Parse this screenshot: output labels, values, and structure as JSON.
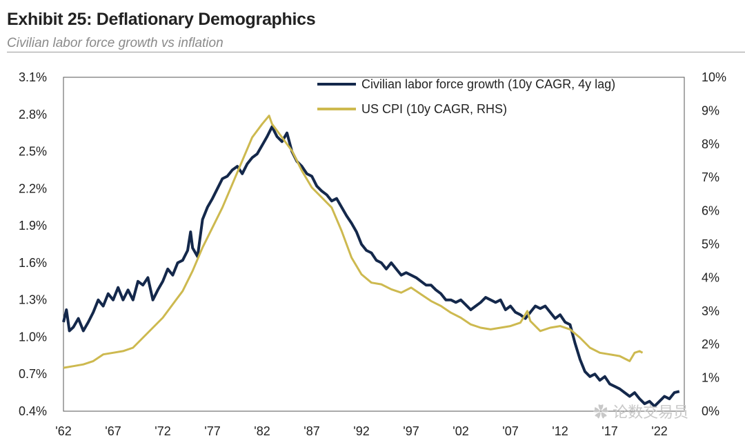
{
  "header": {
    "title": "Exhibit 25: Deflationary Demographics",
    "subtitle": "Civilian labor force growth vs inflation"
  },
  "watermark": {
    "text": "论数交易员",
    "icon": "wechat-icon"
  },
  "chart_data": {
    "type": "line",
    "title": "Exhibit 25: Deflationary Demographics",
    "subtitle": "Civilian labor force growth vs inflation",
    "x_tick_labels": [
      "'62",
      "'67",
      "'72",
      "'77",
      "'82",
      "'87",
      "'92",
      "'97",
      "'02",
      "'07",
      "'12",
      "'17",
      "'22"
    ],
    "x_range": [
      1962,
      2024.5
    ],
    "y_left": {
      "range": [
        0.4,
        3.1
      ],
      "ticks": [
        0.4,
        0.7,
        1.0,
        1.3,
        1.6,
        1.9,
        2.2,
        2.5,
        2.8,
        3.1
      ],
      "tick_labels": [
        "0.4%",
        "0.7%",
        "1.0%",
        "1.3%",
        "1.6%",
        "1.9%",
        "2.2%",
        "2.5%",
        "2.8%",
        "3.1%"
      ]
    },
    "y_right": {
      "range": [
        0,
        10
      ],
      "ticks": [
        0,
        1,
        2,
        3,
        4,
        5,
        6,
        7,
        8,
        9,
        10
      ],
      "tick_labels": [
        "0%",
        "1%",
        "2%",
        "3%",
        "4%",
        "5%",
        "6%",
        "7%",
        "8%",
        "9%",
        "10%"
      ]
    },
    "legend_position": "top-right",
    "grid": false,
    "series": [
      {
        "name": "Civilian labor force growth (10y CAGR, 4y lag)",
        "axis": "left",
        "color": "#14284b",
        "points": [
          [
            1962,
            1.12
          ],
          [
            1962.3,
            1.22
          ],
          [
            1962.6,
            1.05
          ],
          [
            1963,
            1.08
          ],
          [
            1963.5,
            1.15
          ],
          [
            1964,
            1.05
          ],
          [
            1964.5,
            1.12
          ],
          [
            1965,
            1.2
          ],
          [
            1965.5,
            1.3
          ],
          [
            1966,
            1.25
          ],
          [
            1966.5,
            1.35
          ],
          [
            1967,
            1.3
          ],
          [
            1967.5,
            1.4
          ],
          [
            1968,
            1.3
          ],
          [
            1968.5,
            1.38
          ],
          [
            1969,
            1.3
          ],
          [
            1969.5,
            1.45
          ],
          [
            1970,
            1.42
          ],
          [
            1970.5,
            1.48
          ],
          [
            1971,
            1.3
          ],
          [
            1971.5,
            1.38
          ],
          [
            1972,
            1.45
          ],
          [
            1972.5,
            1.55
          ],
          [
            1973,
            1.5
          ],
          [
            1973.5,
            1.6
          ],
          [
            1974,
            1.62
          ],
          [
            1974.5,
            1.7
          ],
          [
            1974.8,
            1.85
          ],
          [
            1975,
            1.72
          ],
          [
            1975.5,
            1.65
          ],
          [
            1976,
            1.95
          ],
          [
            1976.5,
            2.05
          ],
          [
            1977,
            2.12
          ],
          [
            1977.5,
            2.2
          ],
          [
            1978,
            2.28
          ],
          [
            1978.5,
            2.3
          ],
          [
            1979,
            2.35
          ],
          [
            1979.5,
            2.38
          ],
          [
            1980,
            2.32
          ],
          [
            1980.5,
            2.4
          ],
          [
            1981,
            2.45
          ],
          [
            1981.5,
            2.48
          ],
          [
            1982,
            2.55
          ],
          [
            1982.5,
            2.62
          ],
          [
            1983,
            2.7
          ],
          [
            1983.5,
            2.62
          ],
          [
            1984,
            2.58
          ],
          [
            1984.5,
            2.65
          ],
          [
            1985,
            2.5
          ],
          [
            1985.5,
            2.42
          ],
          [
            1986,
            2.38
          ],
          [
            1986.5,
            2.32
          ],
          [
            1987,
            2.3
          ],
          [
            1987.5,
            2.22
          ],
          [
            1988,
            2.18
          ],
          [
            1988.5,
            2.15
          ],
          [
            1989,
            2.1
          ],
          [
            1989.5,
            2.12
          ],
          [
            1990,
            2.05
          ],
          [
            1990.5,
            1.98
          ],
          [
            1991,
            1.92
          ],
          [
            1991.5,
            1.85
          ],
          [
            1992,
            1.75
          ],
          [
            1992.5,
            1.7
          ],
          [
            1993,
            1.68
          ],
          [
            1993.5,
            1.62
          ],
          [
            1994,
            1.6
          ],
          [
            1994.5,
            1.55
          ],
          [
            1995,
            1.6
          ],
          [
            1995.5,
            1.55
          ],
          [
            1996,
            1.5
          ],
          [
            1996.5,
            1.52
          ],
          [
            1997,
            1.5
          ],
          [
            1997.5,
            1.48
          ],
          [
            1998,
            1.45
          ],
          [
            1998.5,
            1.42
          ],
          [
            1999,
            1.42
          ],
          [
            1999.5,
            1.38
          ],
          [
            2000,
            1.35
          ],
          [
            2000.5,
            1.3
          ],
          [
            2001,
            1.3
          ],
          [
            2001.5,
            1.28
          ],
          [
            2002,
            1.3
          ],
          [
            2002.5,
            1.26
          ],
          [
            2003,
            1.22
          ],
          [
            2003.5,
            1.25
          ],
          [
            2004,
            1.28
          ],
          [
            2004.5,
            1.32
          ],
          [
            2005,
            1.3
          ],
          [
            2005.5,
            1.28
          ],
          [
            2006,
            1.3
          ],
          [
            2006.5,
            1.22
          ],
          [
            2007,
            1.25
          ],
          [
            2007.5,
            1.2
          ],
          [
            2008,
            1.18
          ],
          [
            2008.5,
            1.15
          ],
          [
            2009,
            1.2
          ],
          [
            2009.5,
            1.25
          ],
          [
            2010,
            1.23
          ],
          [
            2010.5,
            1.25
          ],
          [
            2011,
            1.2
          ],
          [
            2011.5,
            1.15
          ],
          [
            2012,
            1.18
          ],
          [
            2012.5,
            1.12
          ],
          [
            2013,
            1.1
          ],
          [
            2013.5,
            0.95
          ],
          [
            2014,
            0.82
          ],
          [
            2014.5,
            0.72
          ],
          [
            2015,
            0.68
          ],
          [
            2015.5,
            0.7
          ],
          [
            2016,
            0.65
          ],
          [
            2016.5,
            0.68
          ],
          [
            2017,
            0.62
          ],
          [
            2017.5,
            0.6
          ],
          [
            2018,
            0.58
          ],
          [
            2018.5,
            0.55
          ],
          [
            2019,
            0.52
          ],
          [
            2019.5,
            0.55
          ],
          [
            2020,
            0.5
          ],
          [
            2020.5,
            0.46
          ],
          [
            2021,
            0.48
          ],
          [
            2021.5,
            0.44
          ],
          [
            2022,
            0.48
          ],
          [
            2022.5,
            0.52
          ],
          [
            2023,
            0.5
          ],
          [
            2023.5,
            0.55
          ],
          [
            2024,
            0.56
          ]
        ]
      },
      {
        "name": "US CPI (10y CAGR, RHS)",
        "axis": "right",
        "color": "#cdb94f",
        "points": [
          [
            1962,
            1.3
          ],
          [
            1963,
            1.35
          ],
          [
            1964,
            1.4
          ],
          [
            1965,
            1.5
          ],
          [
            1966,
            1.7
          ],
          [
            1967,
            1.75
          ],
          [
            1968,
            1.8
          ],
          [
            1969,
            1.9
          ],
          [
            1970,
            2.2
          ],
          [
            1971,
            2.5
          ],
          [
            1972,
            2.8
          ],
          [
            1973,
            3.2
          ],
          [
            1974,
            3.6
          ],
          [
            1975,
            4.2
          ],
          [
            1976,
            4.9
          ],
          [
            1977,
            5.5
          ],
          [
            1978,
            6.1
          ],
          [
            1979,
            6.8
          ],
          [
            1980,
            7.5
          ],
          [
            1981,
            8.2
          ],
          [
            1982,
            8.6
          ],
          [
            1982.7,
            8.85
          ],
          [
            1983,
            8.6
          ],
          [
            1984,
            8.2
          ],
          [
            1985,
            7.8
          ],
          [
            1986,
            7.2
          ],
          [
            1987,
            6.7
          ],
          [
            1988,
            6.4
          ],
          [
            1989,
            6.1
          ],
          [
            1990,
            5.4
          ],
          [
            1991,
            4.6
          ],
          [
            1992,
            4.1
          ],
          [
            1993,
            3.85
          ],
          [
            1994,
            3.8
          ],
          [
            1995,
            3.65
          ],
          [
            1996,
            3.55
          ],
          [
            1997,
            3.7
          ],
          [
            1998,
            3.5
          ],
          [
            1999,
            3.3
          ],
          [
            2000,
            3.15
          ],
          [
            2001,
            2.95
          ],
          [
            2002,
            2.8
          ],
          [
            2003,
            2.6
          ],
          [
            2004,
            2.5
          ],
          [
            2005,
            2.45
          ],
          [
            2006,
            2.5
          ],
          [
            2007,
            2.55
          ],
          [
            2008,
            2.65
          ],
          [
            2008.7,
            3.0
          ],
          [
            2009,
            2.7
          ],
          [
            2010,
            2.4
          ],
          [
            2011,
            2.5
          ],
          [
            2012,
            2.55
          ],
          [
            2013,
            2.45
          ],
          [
            2014,
            2.2
          ],
          [
            2015,
            1.9
          ],
          [
            2016,
            1.75
          ],
          [
            2017,
            1.7
          ],
          [
            2018,
            1.65
          ],
          [
            2019,
            1.5
          ],
          [
            2019.5,
            1.75
          ],
          [
            2020,
            1.8
          ],
          [
            2020.3,
            1.75
          ]
        ]
      }
    ]
  }
}
